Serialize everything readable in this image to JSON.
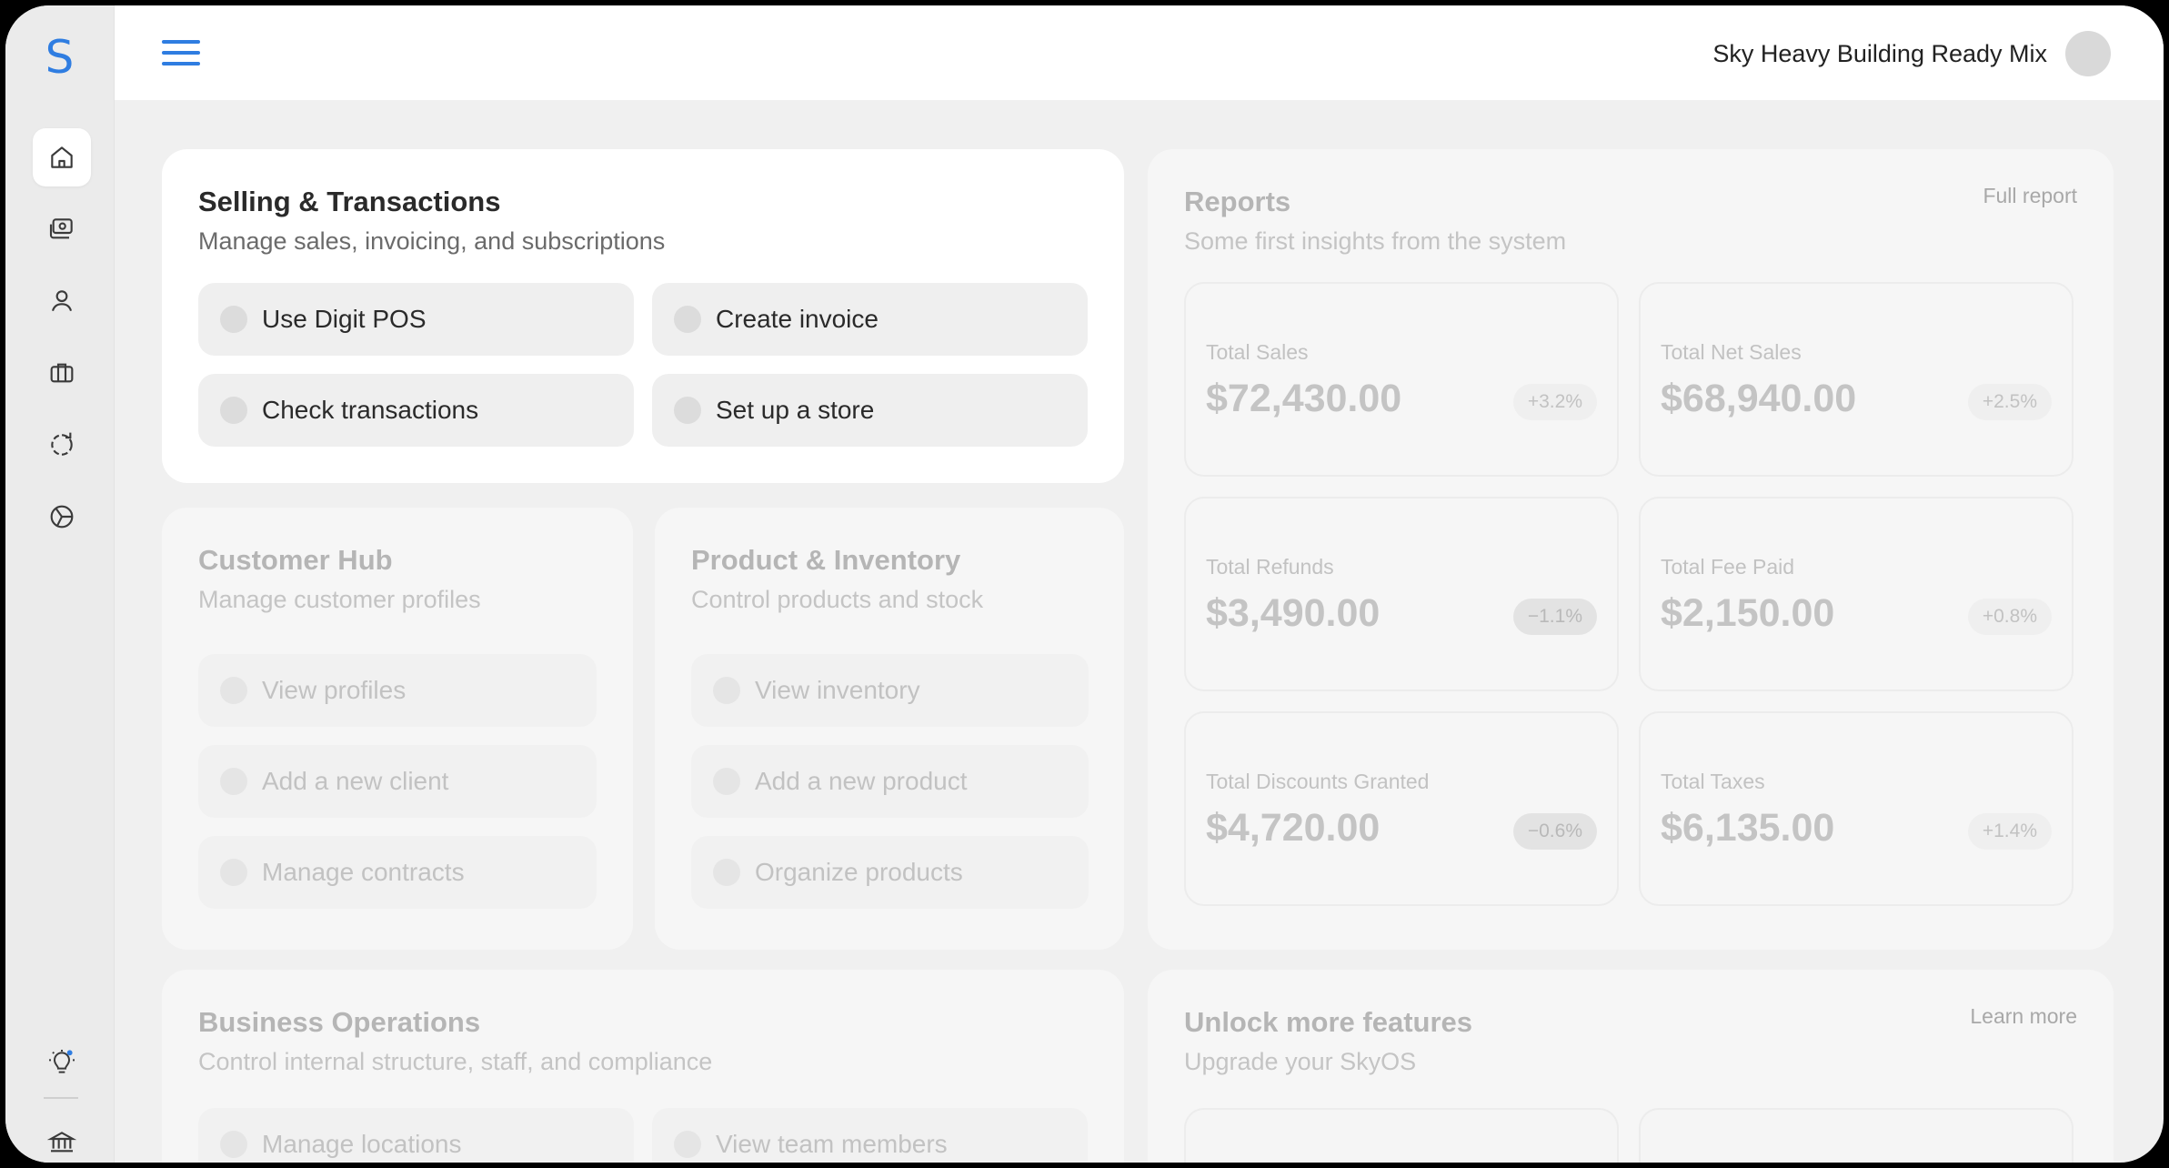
{
  "app": {
    "logo_letter": "S",
    "business_name": "Sky Heavy Building Ready Mix"
  },
  "sidebar": {
    "items": [
      {
        "icon": "home-icon",
        "active": true
      },
      {
        "icon": "payments-icon",
        "active": false
      },
      {
        "icon": "user-icon",
        "active": false
      },
      {
        "icon": "briefcase-icon",
        "active": false
      },
      {
        "icon": "refresh-cycle-icon",
        "active": false
      },
      {
        "icon": "pie-chart-icon",
        "active": false
      }
    ],
    "bottom_items": [
      {
        "icon": "lightbulb-icon",
        "has_notification": true
      },
      {
        "icon": "bank-icon"
      }
    ]
  },
  "selling": {
    "title": "Selling & Transactions",
    "subtitle": "Manage sales, invoicing, and subscriptions",
    "actions": [
      "Use Digit POS",
      "Create invoice",
      "Check transactions",
      "Set up a store"
    ]
  },
  "customer_hub": {
    "title": "Customer Hub",
    "subtitle": "Manage customer profiles",
    "actions": [
      "View profiles",
      "Add a new client",
      "Manage contracts"
    ]
  },
  "product_inventory": {
    "title": "Product & Inventory",
    "subtitle": "Control products and stock",
    "actions": [
      "View inventory",
      "Add a new product",
      "Organize products"
    ]
  },
  "reports": {
    "title": "Reports",
    "subtitle": "Some first insights from the system",
    "link": "Full report",
    "stats": [
      {
        "label": "Total Sales",
        "value": "$72,430.00",
        "change": "+3.2%"
      },
      {
        "label": "Total Net Sales",
        "value": "$68,940.00",
        "change": "+2.5%"
      },
      {
        "label": "Total Refunds",
        "value": "$3,490.00",
        "change": "−1.1%"
      },
      {
        "label": "Total Fee Paid",
        "value": "$2,150.00",
        "change": "+0.8%"
      },
      {
        "label": "Total Discounts Granted",
        "value": "$4,720.00",
        "change": "−0.6%"
      },
      {
        "label": "Total Taxes",
        "value": "$6,135.00",
        "change": "+1.4%"
      }
    ]
  },
  "business_operations": {
    "title": "Business Operations",
    "subtitle": "Control internal structure, staff, and compliance",
    "actions": [
      "Manage locations",
      "View team members"
    ]
  },
  "unlock": {
    "title": "Unlock more features",
    "subtitle": "Upgrade your SkyOS",
    "link": "Learn more"
  },
  "colors": {
    "accent": "#2f7de1",
    "notification": "#2f7de1"
  }
}
